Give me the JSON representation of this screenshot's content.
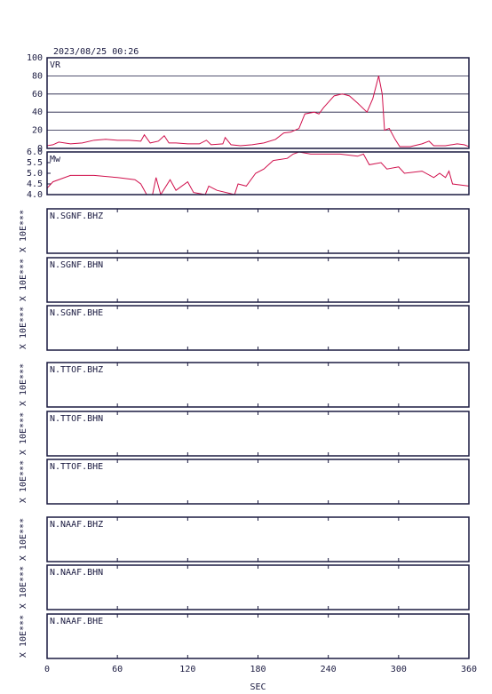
{
  "chart_data": [
    {
      "type": "line",
      "title": "2023/08/25 00:26",
      "label": "VR",
      "color": "#d0104c",
      "grid": true,
      "x": [
        0,
        5,
        10,
        20,
        30,
        40,
        50,
        60,
        70,
        80,
        83,
        88,
        95,
        100,
        104,
        110,
        120,
        130,
        136,
        140,
        150,
        152,
        157,
        165,
        175,
        185,
        195,
        202,
        208,
        215,
        220,
        228,
        232,
        236,
        245,
        252,
        258,
        265,
        273,
        278,
        283,
        286,
        288,
        292,
        297,
        301,
        310,
        320,
        326,
        330,
        340,
        350,
        356,
        360
      ],
      "values": [
        3,
        4,
        7,
        5,
        6,
        9,
        10,
        9,
        9,
        8,
        15,
        6,
        8,
        14,
        6,
        6,
        5,
        5,
        9,
        4,
        5,
        12,
        4,
        3,
        4,
        6,
        10,
        17,
        18,
        22,
        38,
        40,
        38,
        45,
        58,
        60,
        58,
        50,
        40,
        55,
        80,
        60,
        20,
        22,
        10,
        2,
        2,
        5,
        8,
        3,
        3,
        5,
        4,
        2
      ],
      "xlim": [
        0,
        360
      ],
      "ylim": [
        0,
        100
      ],
      "yticks": [
        0,
        20,
        40,
        60,
        80,
        100
      ]
    },
    {
      "type": "line",
      "label": "Mw",
      "color": "#d0104c",
      "x": [
        0,
        5,
        20,
        40,
        60,
        75,
        80,
        85,
        90,
        93,
        97,
        105,
        110,
        120,
        125,
        135,
        138,
        145,
        160,
        163,
        170,
        178,
        185,
        193,
        205,
        210,
        215,
        225,
        250,
        265,
        270,
        275,
        285,
        290,
        300,
        305,
        320,
        330,
        335,
        340,
        343,
        346,
        360
      ],
      "values": [
        4.3,
        4.6,
        4.9,
        4.9,
        4.8,
        4.7,
        4.5,
        4.0,
        4.0,
        4.8,
        4.0,
        4.7,
        4.2,
        4.6,
        4.1,
        4.0,
        4.4,
        4.2,
        4.0,
        4.5,
        4.4,
        5.0,
        5.2,
        5.6,
        5.7,
        5.9,
        6.0,
        5.9,
        5.9,
        5.8,
        5.9,
        5.4,
        5.5,
        5.2,
        5.3,
        5.0,
        5.1,
        4.8,
        5.0,
        4.8,
        5.1,
        4.5,
        4.4
      ],
      "xlim": [
        0,
        360
      ],
      "ylim": [
        4,
        6
      ],
      "yticks": [
        {
          "value": 4,
          "label": "4.0"
        },
        {
          "value": 4.5,
          "label": "4.5"
        },
        {
          "value": 5,
          "label": "5.0"
        },
        {
          "value": 5.5,
          "label": "5.5"
        },
        {
          "value": 6,
          "label": "6.0"
        }
      ]
    },
    {
      "type": "line",
      "label": "N.SGNF.BHZ",
      "ylabel": "X 10E***",
      "xlim": [
        0,
        360
      ],
      "xticks": [
        0,
        60,
        120,
        180,
        240,
        300,
        360
      ]
    },
    {
      "type": "line",
      "label": "N.SGNF.BHN",
      "ylabel": "X 10E***",
      "xlim": [
        0,
        360
      ],
      "xticks": [
        0,
        60,
        120,
        180,
        240,
        300,
        360
      ]
    },
    {
      "type": "line",
      "label": "N.SGNF.BHE",
      "ylabel": "X 10E***",
      "xlim": [
        0,
        360
      ],
      "xticks": [
        0,
        60,
        120,
        180,
        240,
        300,
        360
      ]
    },
    {
      "type": "line",
      "label": "N.TTOF.BHZ",
      "ylabel": "X 10E***",
      "xlim": [
        0,
        360
      ],
      "xticks": [
        0,
        60,
        120,
        180,
        240,
        300,
        360
      ]
    },
    {
      "type": "line",
      "label": "N.TTOF.BHN",
      "ylabel": "X 10E***",
      "xlim": [
        0,
        360
      ],
      "xticks": [
        0,
        60,
        120,
        180,
        240,
        300,
        360
      ]
    },
    {
      "type": "line",
      "label": "N.TTOF.BHE",
      "ylabel": "X 10E***",
      "xlim": [
        0,
        360
      ],
      "xticks": [
        0,
        60,
        120,
        180,
        240,
        300,
        360
      ]
    },
    {
      "type": "line",
      "label": "N.NAAF.BHZ",
      "ylabel": "X 10E***",
      "xlim": [
        0,
        360
      ],
      "xticks": [
        0,
        60,
        120,
        180,
        240,
        300,
        360
      ]
    },
    {
      "type": "line",
      "label": "N.NAAF.BHN",
      "ylabel": "X 10E***",
      "xlim": [
        0,
        360
      ],
      "xticks": [
        0,
        60,
        120,
        180,
        240,
        300,
        360
      ]
    },
    {
      "type": "line",
      "label": "N.NAAF.BHE",
      "ylabel": "X 10E***",
      "xlabel": "SEC",
      "xlim": [
        0,
        360
      ],
      "xticks": [
        0,
        60,
        120,
        180,
        240,
        300,
        360
      ]
    }
  ]
}
